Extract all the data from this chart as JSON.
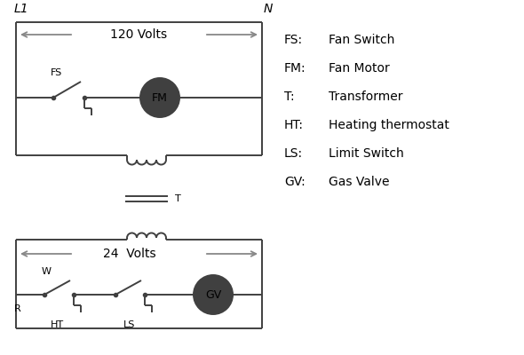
{
  "bg_color": "#ffffff",
  "line_color": "#404040",
  "arrow_color": "#888888",
  "text_color": "#000000",
  "legend": [
    [
      "FS:",
      "Fan Switch"
    ],
    [
      "FM:",
      "Fan Motor"
    ],
    [
      "T:",
      "Transformer"
    ],
    [
      "HT:",
      "Heating thermostat"
    ],
    [
      "LS:",
      "Limit Switch"
    ],
    [
      "GV:",
      "Gas Valve"
    ]
  ],
  "L1_label": "L1",
  "N_label": "N",
  "volts120_label": "120 Volts",
  "volts24_label": "24  Volts",
  "FS_label": "FS",
  "FM_label": "FM",
  "T_label": "T",
  "R_label": "R",
  "W_label": "W",
  "HT_label": "HT",
  "LS_label": "LS",
  "GV_label": "GV"
}
